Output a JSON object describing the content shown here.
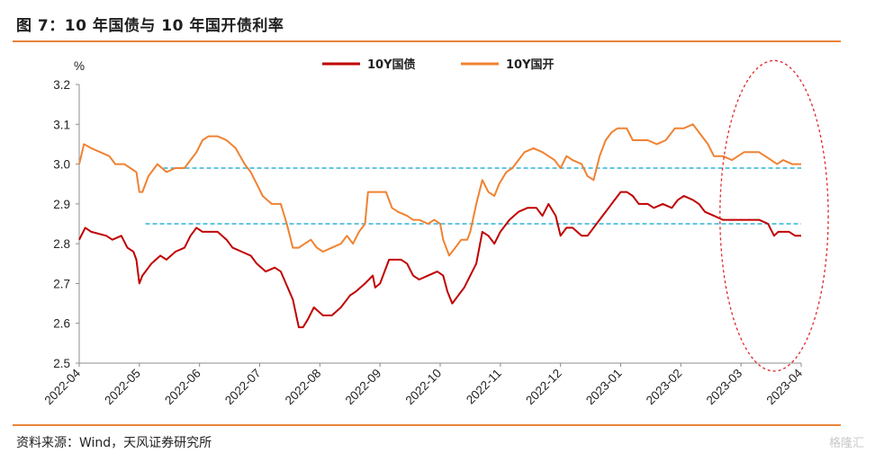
{
  "header": {
    "title": "图 7：10 年国债与 10 年国开债利率"
  },
  "footer": {
    "source": "资料来源：Wind，天风证券研究所",
    "watermark": "格隆汇"
  },
  "colors": {
    "accent": "#E8843A",
    "gov": "#C00000",
    "cdb": "#F08232",
    "ref_line": "#2FB3D6",
    "ellipse": "#E0252A"
  },
  "chart_data": {
    "type": "line",
    "ylabel": "%",
    "ylim": [
      2.5,
      3.2
    ],
    "yticks": [
      "2.5",
      "2.6",
      "2.7",
      "2.8",
      "2.9",
      "3.0",
      "3.1",
      "3.2"
    ],
    "xticks": [
      "2022-04",
      "2022-05",
      "2022-06",
      "2022-07",
      "2022-08",
      "2022-09",
      "2022-10",
      "2022-11",
      "2022-12",
      "2023-01",
      "2023-02",
      "2023-03",
      "2023-04"
    ],
    "legend_position": "top-center",
    "grid": false,
    "series": [
      {
        "name": "10Y国债",
        "color": "#C00000",
        "points": [
          [
            0,
            2.81
          ],
          [
            0.1,
            2.84
          ],
          [
            0.2,
            2.83
          ],
          [
            0.45,
            2.82
          ],
          [
            0.55,
            2.81
          ],
          [
            0.7,
            2.82
          ],
          [
            0.8,
            2.79
          ],
          [
            0.9,
            2.78
          ],
          [
            0.95,
            2.76
          ],
          [
            1.0,
            2.7
          ],
          [
            1.05,
            2.72
          ],
          [
            1.2,
            2.75
          ],
          [
            1.35,
            2.77
          ],
          [
            1.45,
            2.76
          ],
          [
            1.6,
            2.78
          ],
          [
            1.75,
            2.79
          ],
          [
            1.85,
            2.82
          ],
          [
            1.95,
            2.84
          ],
          [
            2.05,
            2.83
          ],
          [
            2.15,
            2.83
          ],
          [
            2.3,
            2.83
          ],
          [
            2.45,
            2.81
          ],
          [
            2.55,
            2.79
          ],
          [
            2.7,
            2.78
          ],
          [
            2.85,
            2.77
          ],
          [
            2.95,
            2.75
          ],
          [
            3.1,
            2.73
          ],
          [
            3.25,
            2.74
          ],
          [
            3.35,
            2.73
          ],
          [
            3.55,
            2.66
          ],
          [
            3.65,
            2.59
          ],
          [
            3.72,
            2.59
          ],
          [
            3.8,
            2.61
          ],
          [
            3.9,
            2.64
          ],
          [
            4.05,
            2.62
          ],
          [
            4.2,
            2.62
          ],
          [
            4.35,
            2.64
          ],
          [
            4.5,
            2.67
          ],
          [
            4.6,
            2.68
          ],
          [
            4.75,
            2.7
          ],
          [
            4.88,
            2.72
          ],
          [
            4.92,
            2.69
          ],
          [
            5.0,
            2.7
          ],
          [
            5.15,
            2.76
          ],
          [
            5.35,
            2.76
          ],
          [
            5.45,
            2.75
          ],
          [
            5.55,
            2.72
          ],
          [
            5.65,
            2.71
          ],
          [
            5.8,
            2.72
          ],
          [
            5.95,
            2.73
          ],
          [
            6.05,
            2.72
          ],
          [
            6.12,
            2.68
          ],
          [
            6.2,
            2.65
          ],
          [
            6.3,
            2.67
          ],
          [
            6.4,
            2.69
          ],
          [
            6.5,
            2.72
          ],
          [
            6.6,
            2.75
          ],
          [
            6.7,
            2.83
          ],
          [
            6.8,
            2.82
          ],
          [
            6.9,
            2.8
          ],
          [
            7.0,
            2.83
          ],
          [
            7.15,
            2.86
          ],
          [
            7.3,
            2.88
          ],
          [
            7.45,
            2.89
          ],
          [
            7.6,
            2.89
          ],
          [
            7.7,
            2.87
          ],
          [
            7.8,
            2.9
          ],
          [
            7.92,
            2.87
          ],
          [
            8.0,
            2.82
          ],
          [
            8.1,
            2.84
          ],
          [
            8.2,
            2.84
          ],
          [
            8.35,
            2.82
          ],
          [
            8.45,
            2.82
          ],
          [
            8.55,
            2.84
          ],
          [
            8.7,
            2.87
          ],
          [
            8.8,
            2.89
          ],
          [
            8.9,
            2.91
          ],
          [
            9.0,
            2.93
          ],
          [
            9.1,
            2.93
          ],
          [
            9.2,
            2.92
          ],
          [
            9.3,
            2.9
          ],
          [
            9.45,
            2.9
          ],
          [
            9.55,
            2.89
          ],
          [
            9.7,
            2.9
          ],
          [
            9.85,
            2.89
          ],
          [
            9.95,
            2.91
          ],
          [
            10.05,
            2.92
          ],
          [
            10.2,
            2.91
          ],
          [
            10.3,
            2.9
          ],
          [
            10.4,
            2.88
          ],
          [
            10.55,
            2.87
          ],
          [
            10.7,
            2.86
          ],
          [
            10.85,
            2.86
          ],
          [
            11.0,
            2.86
          ],
          [
            11.15,
            2.86
          ],
          [
            11.3,
            2.86
          ],
          [
            11.45,
            2.85
          ],
          [
            11.55,
            2.82
          ],
          [
            11.62,
            2.83
          ],
          [
            11.7,
            2.83
          ],
          [
            11.8,
            2.83
          ],
          [
            11.9,
            2.82
          ],
          [
            12.0,
            2.82
          ]
        ]
      },
      {
        "name": "10Y国开",
        "color": "#F08232",
        "points": [
          [
            0,
            3.0
          ],
          [
            0.08,
            3.05
          ],
          [
            0.2,
            3.04
          ],
          [
            0.35,
            3.03
          ],
          [
            0.5,
            3.02
          ],
          [
            0.6,
            3.0
          ],
          [
            0.75,
            3.0
          ],
          [
            0.85,
            2.99
          ],
          [
            0.95,
            2.98
          ],
          [
            1.0,
            2.93
          ],
          [
            1.05,
            2.93
          ],
          [
            1.15,
            2.97
          ],
          [
            1.3,
            3.0
          ],
          [
            1.45,
            2.98
          ],
          [
            1.6,
            2.99
          ],
          [
            1.75,
            2.99
          ],
          [
            1.85,
            3.01
          ],
          [
            1.95,
            3.03
          ],
          [
            2.05,
            3.06
          ],
          [
            2.15,
            3.07
          ],
          [
            2.3,
            3.07
          ],
          [
            2.45,
            3.06
          ],
          [
            2.6,
            3.04
          ],
          [
            2.75,
            3.0
          ],
          [
            2.85,
            2.98
          ],
          [
            2.95,
            2.95
          ],
          [
            3.05,
            2.92
          ],
          [
            3.2,
            2.9
          ],
          [
            3.35,
            2.9
          ],
          [
            3.45,
            2.85
          ],
          [
            3.55,
            2.79
          ],
          [
            3.65,
            2.79
          ],
          [
            3.75,
            2.8
          ],
          [
            3.85,
            2.81
          ],
          [
            3.95,
            2.79
          ],
          [
            4.05,
            2.78
          ],
          [
            4.2,
            2.79
          ],
          [
            4.35,
            2.8
          ],
          [
            4.45,
            2.82
          ],
          [
            4.55,
            2.8
          ],
          [
            4.65,
            2.83
          ],
          [
            4.75,
            2.85
          ],
          [
            4.8,
            2.93
          ],
          [
            4.95,
            2.93
          ],
          [
            5.1,
            2.93
          ],
          [
            5.2,
            2.89
          ],
          [
            5.3,
            2.88
          ],
          [
            5.45,
            2.87
          ],
          [
            5.55,
            2.86
          ],
          [
            5.65,
            2.86
          ],
          [
            5.8,
            2.85
          ],
          [
            5.9,
            2.86
          ],
          [
            6.0,
            2.85
          ],
          [
            6.05,
            2.81
          ],
          [
            6.15,
            2.77
          ],
          [
            6.25,
            2.79
          ],
          [
            6.35,
            2.81
          ],
          [
            6.45,
            2.81
          ],
          [
            6.5,
            2.83
          ],
          [
            6.6,
            2.9
          ],
          [
            6.7,
            2.96
          ],
          [
            6.8,
            2.93
          ],
          [
            6.9,
            2.92
          ],
          [
            6.98,
            2.95
          ],
          [
            7.1,
            2.98
          ],
          [
            7.2,
            2.99
          ],
          [
            7.3,
            3.01
          ],
          [
            7.4,
            3.03
          ],
          [
            7.55,
            3.04
          ],
          [
            7.7,
            3.03
          ],
          [
            7.8,
            3.02
          ],
          [
            7.9,
            3.01
          ],
          [
            8.0,
            2.99
          ],
          [
            8.1,
            3.02
          ],
          [
            8.2,
            3.01
          ],
          [
            8.35,
            3.0
          ],
          [
            8.45,
            2.97
          ],
          [
            8.55,
            2.96
          ],
          [
            8.65,
            3.02
          ],
          [
            8.75,
            3.06
          ],
          [
            8.85,
            3.08
          ],
          [
            8.95,
            3.09
          ],
          [
            9.1,
            3.09
          ],
          [
            9.2,
            3.06
          ],
          [
            9.3,
            3.06
          ],
          [
            9.45,
            3.06
          ],
          [
            9.6,
            3.05
          ],
          [
            9.75,
            3.06
          ],
          [
            9.9,
            3.09
          ],
          [
            10.05,
            3.09
          ],
          [
            10.2,
            3.1
          ],
          [
            10.3,
            3.08
          ],
          [
            10.45,
            3.05
          ],
          [
            10.55,
            3.02
          ],
          [
            10.7,
            3.02
          ],
          [
            10.85,
            3.01
          ],
          [
            10.95,
            3.02
          ],
          [
            11.05,
            3.03
          ],
          [
            11.2,
            3.03
          ],
          [
            11.3,
            3.03
          ],
          [
            11.4,
            3.02
          ],
          [
            11.5,
            3.01
          ],
          [
            11.6,
            3.0
          ],
          [
            11.7,
            3.01
          ],
          [
            11.85,
            3.0
          ],
          [
            12.0,
            3.0
          ]
        ]
      }
    ],
    "reference_lines": [
      {
        "value": 2.99,
        "x_start": 1.4,
        "x_end": 12.0,
        "color": "#2FB3D6",
        "style": "dashed"
      },
      {
        "value": 2.85,
        "x_start": 1.1,
        "x_end": 12.0,
        "color": "#2FB3D6",
        "style": "dashed"
      }
    ],
    "highlight_ellipse": {
      "x_center": 11.55,
      "y_center": 2.87,
      "x_radius": 0.9,
      "y_radius": 0.39,
      "color": "#E0252A",
      "style": "dashed"
    }
  }
}
